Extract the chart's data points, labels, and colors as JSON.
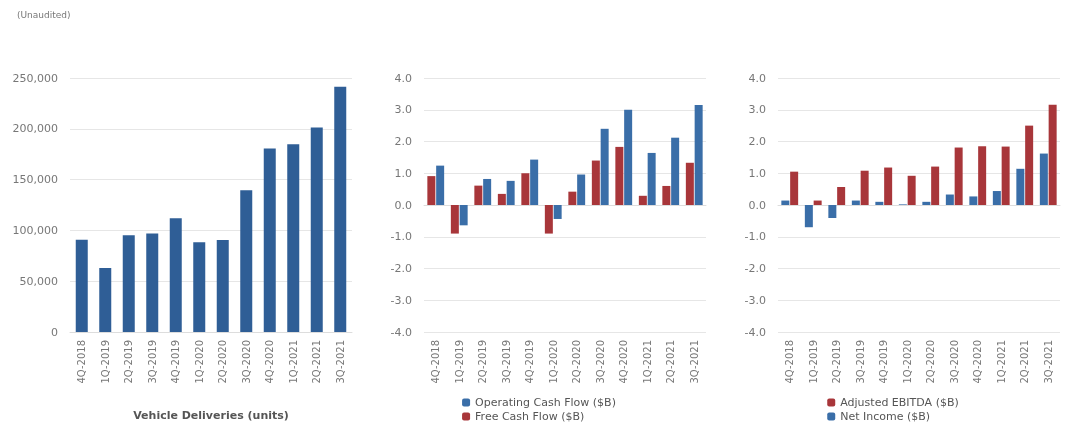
{
  "chart_data": [
    {
      "type": "bar",
      "subtitle": "(Unaudited)",
      "xlabel": "Vehicle Deliveries (units)",
      "categories": [
        "4Q-2018",
        "1Q-2019",
        "2Q-2019",
        "3Q-2019",
        "4Q-2019",
        "1Q-2020",
        "2Q-2020",
        "3Q-2020",
        "4Q-2020",
        "1Q-2021",
        "2Q-2021",
        "3Q-2021"
      ],
      "series": [
        {
          "color": "#2f5e96",
          "values": [
            90700,
            63000,
            95200,
            97000,
            112000,
            88400,
            90650,
            139600,
            180600,
            184800,
            201300,
            241300
          ]
        }
      ],
      "ylim": [
        0,
        250000
      ],
      "yticks": [
        {
          "value": 0,
          "label": "0"
        },
        {
          "value": 50000,
          "label": "50,000"
        },
        {
          "value": 100000,
          "label": "100,000"
        },
        {
          "value": 150000,
          "label": "150,000"
        },
        {
          "value": 200000,
          "label": "200,000"
        },
        {
          "value": 250000,
          "label": "250,000"
        }
      ],
      "grid": "y",
      "legend": false
    },
    {
      "type": "bar",
      "categories": [
        "4Q-2018",
        "1Q-2019",
        "2Q-2019",
        "3Q-2019",
        "4Q-2019",
        "1Q-2020",
        "2Q-2020",
        "3Q-2020",
        "4Q-2020",
        "1Q-2021",
        "2Q-2021",
        "3Q-2021"
      ],
      "series": [
        {
          "name": "Free Cash Flow ($B)",
          "color": "#a8363a",
          "values": [
            0.91,
            -0.9,
            0.61,
            0.35,
            1.0,
            -0.9,
            0.42,
            1.4,
            1.83,
            0.29,
            0.6,
            1.33
          ]
        },
        {
          "name": "Operating Cash Flow ($B)",
          "color": "#3a6ea8",
          "values": [
            1.24,
            -0.64,
            0.82,
            0.76,
            1.43,
            -0.44,
            0.96,
            2.4,
            3.0,
            1.64,
            2.12,
            3.15
          ]
        }
      ],
      "ylim": [
        -4,
        4
      ],
      "yticks": [
        {
          "value": -4,
          "label": "-4.0"
        },
        {
          "value": -3,
          "label": "-3.0"
        },
        {
          "value": -2,
          "label": "-2.0"
        },
        {
          "value": -1,
          "label": "-1.0"
        },
        {
          "value": 0,
          "label": "0.0"
        },
        {
          "value": 1,
          "label": "1.0"
        },
        {
          "value": 2,
          "label": "2.0"
        },
        {
          "value": 3,
          "label": "3.0"
        },
        {
          "value": 4,
          "label": "4.0"
        }
      ],
      "grid": "y",
      "legend": "bottom"
    },
    {
      "type": "bar",
      "categories": [
        "4Q-2018",
        "1Q-2019",
        "2Q-2019",
        "3Q-2019",
        "4Q-2019",
        "1Q-2020",
        "2Q-2020",
        "3Q-2020",
        "4Q-2020",
        "1Q-2021",
        "2Q-2021",
        "3Q-2021"
      ],
      "series": [
        {
          "name": "Net Income ($B)",
          "color": "#3a6ea8",
          "values": [
            0.14,
            -0.7,
            -0.41,
            0.14,
            0.1,
            0.02,
            0.1,
            0.33,
            0.27,
            0.44,
            1.14,
            1.62
          ]
        },
        {
          "name": "Adjusted EBITDA ($B)",
          "color": "#a8363a",
          "values": [
            1.05,
            0.14,
            0.57,
            1.08,
            1.18,
            0.92,
            1.21,
            1.81,
            1.85,
            1.84,
            2.5,
            3.16
          ]
        }
      ],
      "ylim": [
        -4,
        4
      ],
      "yticks": [
        {
          "value": -4,
          "label": "-4.0"
        },
        {
          "value": -3,
          "label": "-3.0"
        },
        {
          "value": -2,
          "label": "-2.0"
        },
        {
          "value": -1,
          "label": "-1.0"
        },
        {
          "value": 0,
          "label": "0.0"
        },
        {
          "value": 1,
          "label": "1.0"
        },
        {
          "value": 2,
          "label": "2.0"
        },
        {
          "value": 3,
          "label": "3.0"
        },
        {
          "value": 4,
          "label": "4.0"
        }
      ],
      "grid": "y",
      "legend": "bottom"
    }
  ]
}
